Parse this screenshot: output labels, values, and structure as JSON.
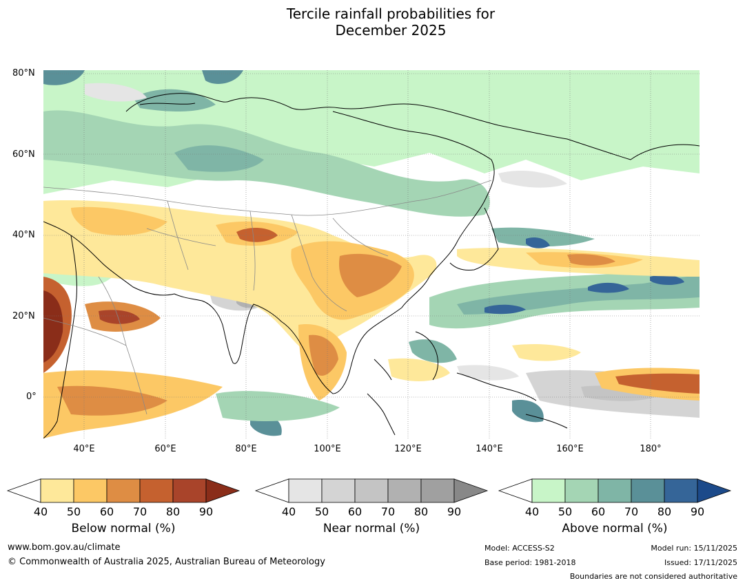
{
  "title": {
    "line1": "Tercile rainfall probabilities for",
    "line2": "December 2025"
  },
  "map": {
    "lat_labels": [
      "80°N",
      "60°N",
      "40°N",
      "20°N",
      "0°"
    ],
    "lon_labels": [
      "40°E",
      "60°E",
      "80°E",
      "100°E",
      "120°E",
      "140°E",
      "160°E",
      "180°"
    ]
  },
  "colorbars": [
    {
      "name": "below",
      "label": "Below normal (%)",
      "ticks": [
        "40",
        "50",
        "60",
        "70",
        "80",
        "90"
      ],
      "colors": [
        "#ffffff",
        "#fee89a",
        "#fcc865",
        "#de8d44",
        "#c5612f",
        "#a9442a",
        "#8a2d19"
      ]
    },
    {
      "name": "near",
      "label": "Near normal (%)",
      "ticks": [
        "40",
        "50",
        "60",
        "70",
        "80",
        "90"
      ],
      "colors": [
        "#ffffff",
        "#e5e5e5",
        "#d4d4d4",
        "#c4c4c4",
        "#b1b1b1",
        "#a0a0a0",
        "#888888"
      ]
    },
    {
      "name": "above",
      "label": "Above normal (%)",
      "ticks": [
        "40",
        "50",
        "60",
        "70",
        "80",
        "90"
      ],
      "colors": [
        "#ffffff",
        "#c8f5c8",
        "#a4d5b4",
        "#7fb5a6",
        "#5a9098",
        "#356598",
        "#1c4a8a"
      ]
    }
  ],
  "footer": {
    "website": "www.bom.gov.au/climate",
    "copyright": "© Commonwealth of Australia 2025, Australian Bureau of Meteorology",
    "model": "Model: ACCESS-S2",
    "base_period": "Base period: 1981-2018",
    "model_run": "Model run: 15/11/2025",
    "issued": "Issued: 17/11/2025",
    "disclaimer": "Boundaries are not considered authoritative"
  }
}
